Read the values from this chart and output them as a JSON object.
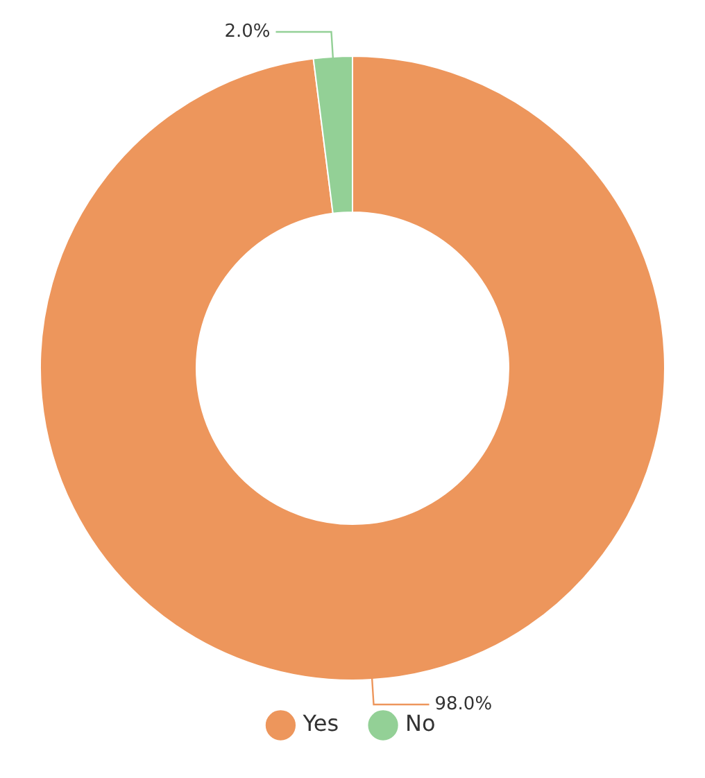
{
  "chart_data": {
    "type": "donut",
    "categories": [
      "Yes",
      "No"
    ],
    "values": [
      98,
      2
    ],
    "colors": [
      "#ed965c",
      "#93d096"
    ],
    "value_labels": [
      "98.0%",
      "2.0%"
    ],
    "legend": "bottom"
  }
}
